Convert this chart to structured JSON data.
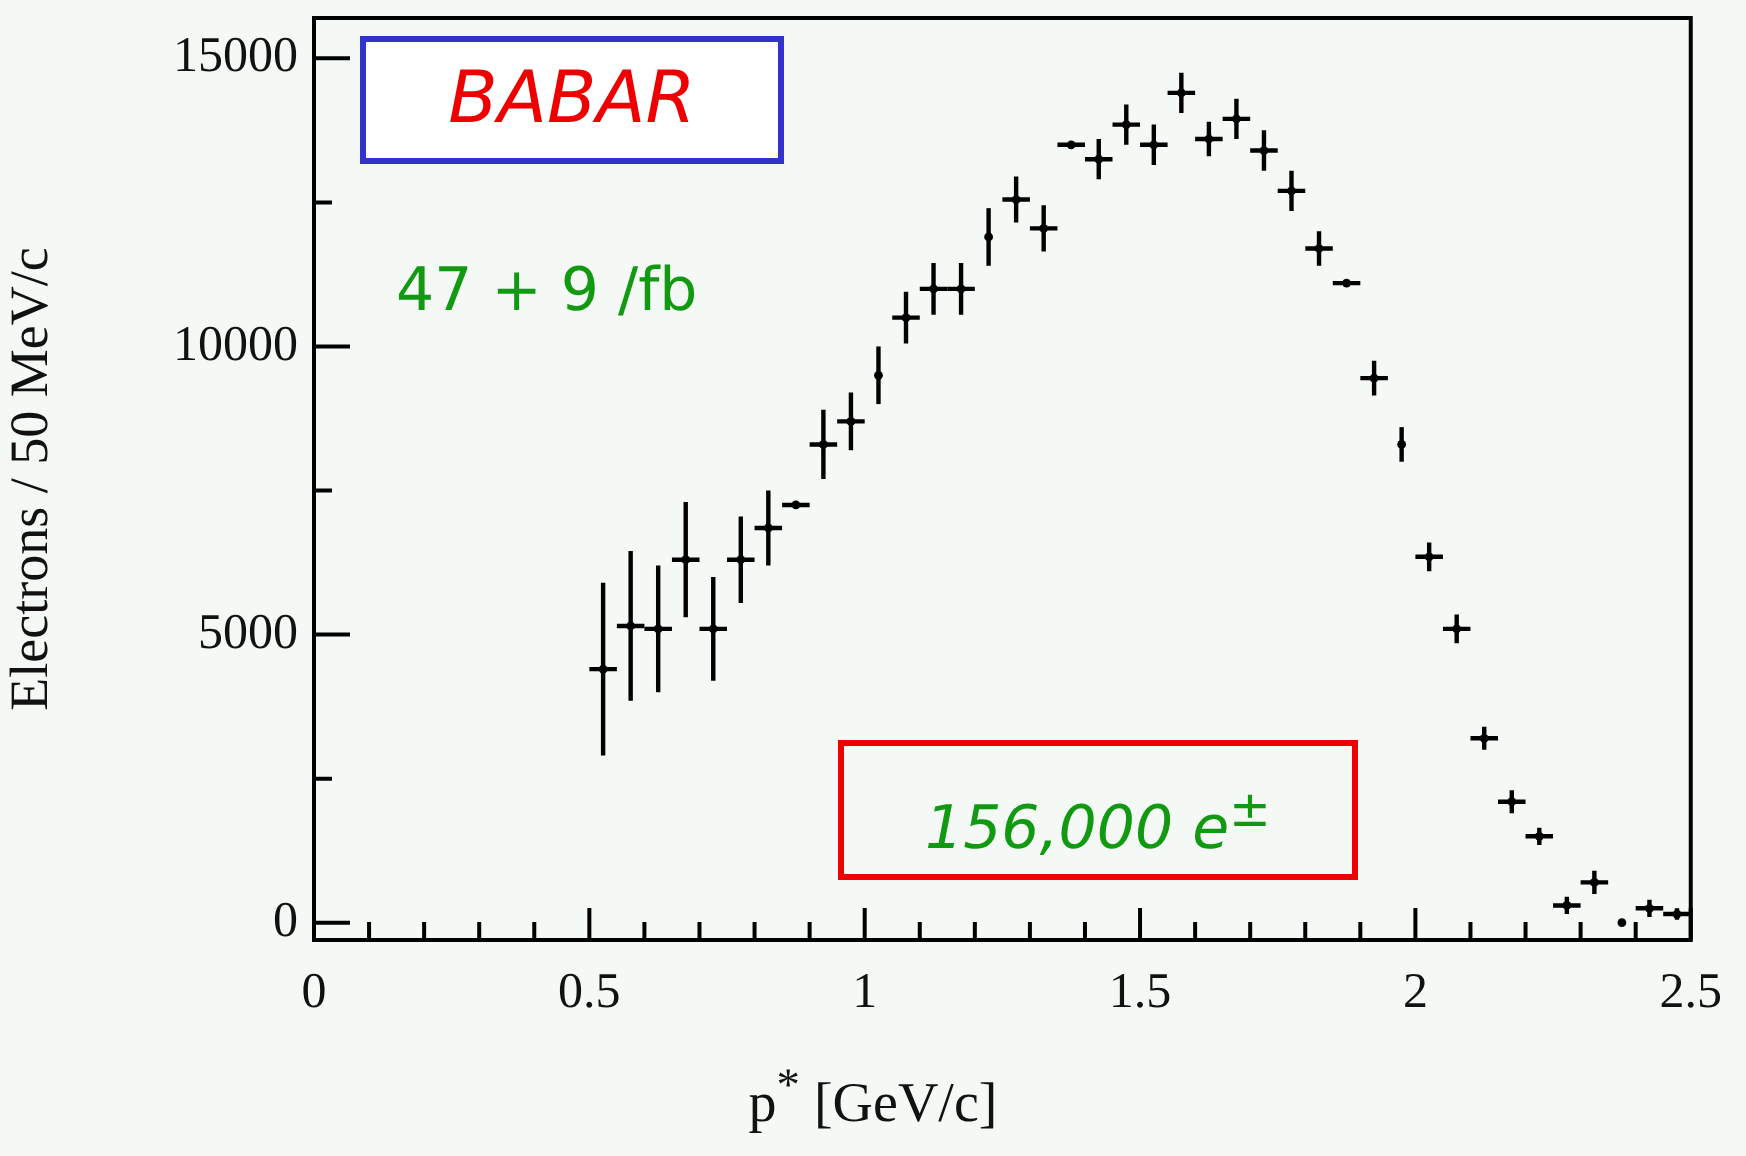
{
  "chart_data": {
    "type": "scatter",
    "xlabel": "p$^{*}$ [GeV/c]",
    "ylabel": "Electrons / 50 MeV/c",
    "annotations": [
      "BABAR",
      "47 + 9 /fb",
      "156,000 e$^{±}$"
    ],
    "grid": false,
    "legend": false,
    "xlim": [
      0,
      2.5
    ],
    "ylim": [
      -300,
      15700
    ],
    "xticks": [
      0,
      {
        "value": 0.1,
        "label": null
      },
      {
        "value": 0.2,
        "label": null
      },
      {
        "value": 0.3,
        "label": null
      },
      {
        "value": 0.4,
        "label": null
      },
      0.5,
      {
        "value": 0.6,
        "label": null
      },
      {
        "value": 0.7,
        "label": null
      },
      {
        "value": 0.8,
        "label": null
      },
      {
        "value": 0.9,
        "label": null
      },
      1,
      {
        "value": 1.1,
        "label": null
      },
      {
        "value": 1.2,
        "label": null
      },
      {
        "value": 1.3,
        "label": null
      },
      {
        "value": 1.4,
        "label": null
      },
      1.5,
      {
        "value": 1.6,
        "label": null
      },
      {
        "value": 1.7,
        "label": null
      },
      {
        "value": 1.8,
        "label": null
      },
      {
        "value": 1.9,
        "label": null
      },
      2,
      {
        "value": 2.1,
        "label": null
      },
      {
        "value": 2.2,
        "label": null
      },
      {
        "value": 2.3,
        "label": null
      },
      {
        "value": 2.4,
        "label": null
      },
      2.5
    ],
    "yticks": [
      0,
      {
        "value": 2500,
        "label": null
      },
      5000,
      {
        "value": 7500,
        "label": null
      },
      10000,
      {
        "value": 12500,
        "label": null
      },
      15000
    ],
    "series": [
      {
        "color": "#000000",
        "x": [
          0.525,
          0.575,
          0.625,
          0.675,
          0.725,
          0.775,
          0.825,
          0.875,
          0.925,
          0.975,
          1.025,
          1.075,
          1.125,
          1.175,
          1.225,
          1.275,
          1.325,
          1.375,
          1.425,
          1.475,
          1.525,
          1.575,
          1.625,
          1.675,
          1.725,
          1.775,
          1.825,
          1.875,
          1.925,
          1.975,
          2.025,
          2.075,
          2.125,
          2.175,
          2.225,
          2.275,
          2.325,
          2.375,
          2.425,
          2.475
        ],
        "values": [
          4400,
          5150,
          5100,
          6300,
          5100,
          6300,
          6850,
          7250,
          8300,
          8700,
          9500,
          10500,
          11000,
          11000,
          11900,
          12550,
          12050,
          13500,
          13250,
          13850,
          13500,
          14400,
          13600,
          13950,
          13400,
          12700,
          11700,
          11100,
          9450,
          8300,
          6350,
          5100,
          3200,
          2100,
          1500,
          300,
          700,
          0,
          250,
          150
        ],
        "errors": [
          1500,
          1300,
          1100,
          1000,
          900,
          750,
          650,
          50,
          600,
          500,
          500,
          450,
          450,
          450,
          500,
          400,
          400,
          50,
          350,
          350,
          350,
          350,
          300,
          350,
          350,
          350,
          300,
          50,
          300,
          300,
          250,
          250,
          200,
          200,
          150,
          150,
          200,
          50,
          150,
          100
        ],
        "xerrors": [
          0.025,
          0.025,
          0.025,
          0.025,
          0.025,
          0.025,
          0.025,
          0.025,
          0.025,
          0.025,
          null,
          0.025,
          0.025,
          0.025,
          null,
          0.025,
          0.025,
          0.025,
          0.025,
          0.025,
          0.025,
          0.025,
          0.025,
          0.025,
          0.025,
          0.025,
          0.025,
          0.025,
          0.025,
          null,
          0.025,
          0.025,
          0.025,
          0.025,
          0.025,
          0.025,
          0.025,
          null,
          0.025,
          0.025
        ]
      }
    ]
  }
}
